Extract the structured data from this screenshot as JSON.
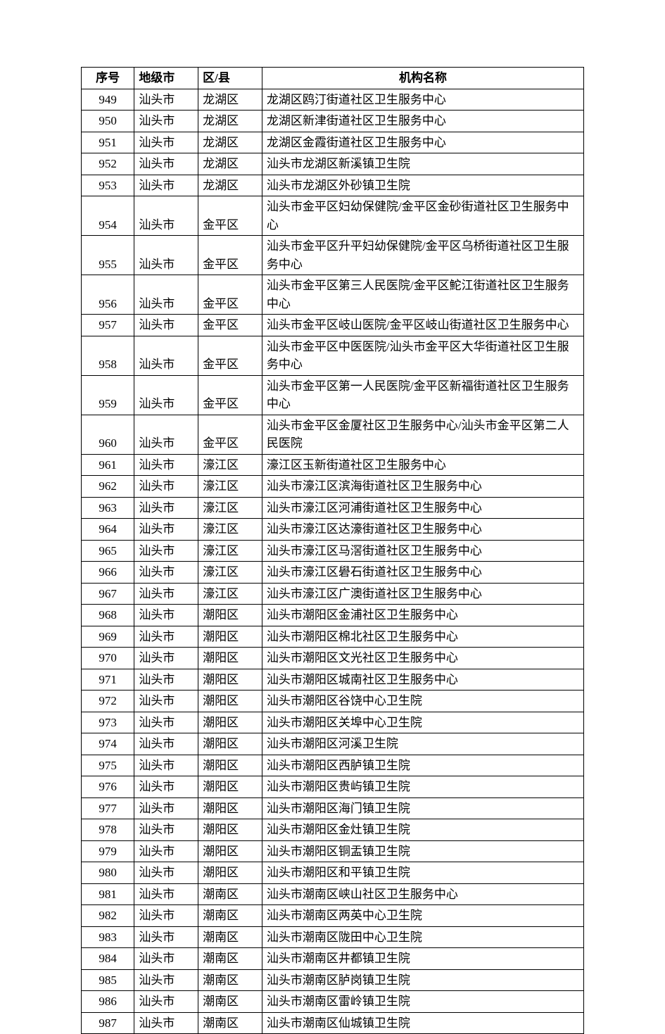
{
  "table": {
    "headers": {
      "seq": "序号",
      "city": "地级市",
      "district": "区/县",
      "name": "机构名称"
    },
    "rows": [
      {
        "seq": "949",
        "city": "汕头市",
        "district": "龙湖区",
        "name": "龙湖区鸥汀街道社区卫生服务中心"
      },
      {
        "seq": "950",
        "city": "汕头市",
        "district": "龙湖区",
        "name": "龙湖区新津街道社区卫生服务中心"
      },
      {
        "seq": "951",
        "city": "汕头市",
        "district": "龙湖区",
        "name": "龙湖区金霞街道社区卫生服务中心"
      },
      {
        "seq": "952",
        "city": "汕头市",
        "district": "龙湖区",
        "name": "汕头市龙湖区新溪镇卫生院"
      },
      {
        "seq": "953",
        "city": "汕头市",
        "district": "龙湖区",
        "name": "汕头市龙湖区外砂镇卫生院"
      },
      {
        "seq": "954",
        "city": "汕头市",
        "district": "金平区",
        "name": "汕头市金平区妇幼保健院/金平区金砂街道社区卫生服务中心"
      },
      {
        "seq": "955",
        "city": "汕头市",
        "district": "金平区",
        "name": "汕头市金平区升平妇幼保健院/金平区乌桥街道社区卫生服务中心"
      },
      {
        "seq": "956",
        "city": "汕头市",
        "district": "金平区",
        "name": "汕头市金平区第三人民医院/金平区鮀江街道社区卫生服务中心"
      },
      {
        "seq": "957",
        "city": "汕头市",
        "district": "金平区",
        "name": "汕头市金平区岐山医院/金平区岐山街道社区卫生服务中心"
      },
      {
        "seq": "958",
        "city": "汕头市",
        "district": "金平区",
        "name": "汕头市金平区中医医院/汕头市金平区大华街道社区卫生服务中心"
      },
      {
        "seq": "959",
        "city": "汕头市",
        "district": "金平区",
        "name": "汕头市金平区第一人民医院/金平区新福街道社区卫生服务中心"
      },
      {
        "seq": "960",
        "city": "汕头市",
        "district": "金平区",
        "name": "汕头市金平区金厦社区卫生服务中心/汕头市金平区第二人民医院"
      },
      {
        "seq": "961",
        "city": "汕头市",
        "district": "濠江区",
        "name": "濠江区玉新街道社区卫生服务中心"
      },
      {
        "seq": "962",
        "city": "汕头市",
        "district": "濠江区",
        "name": "汕头市濠江区滨海街道社区卫生服务中心"
      },
      {
        "seq": "963",
        "city": "汕头市",
        "district": "濠江区",
        "name": "汕头市濠江区河浦街道社区卫生服务中心"
      },
      {
        "seq": "964",
        "city": "汕头市",
        "district": "濠江区",
        "name": "汕头市濠江区达濠街道社区卫生服务中心"
      },
      {
        "seq": "965",
        "city": "汕头市",
        "district": "濠江区",
        "name": "汕头市濠江区马滘街道社区卫生服务中心"
      },
      {
        "seq": "966",
        "city": "汕头市",
        "district": "濠江区",
        "name": "汕头市濠江区礐石街道社区卫生服务中心"
      },
      {
        "seq": "967",
        "city": "汕头市",
        "district": "濠江区",
        "name": "汕头市濠江区广澳街道社区卫生服务中心"
      },
      {
        "seq": "968",
        "city": "汕头市",
        "district": "潮阳区",
        "name": "汕头市潮阳区金浦社区卫生服务中心"
      },
      {
        "seq": "969",
        "city": "汕头市",
        "district": "潮阳区",
        "name": "汕头市潮阳区棉北社区卫生服务中心"
      },
      {
        "seq": "970",
        "city": "汕头市",
        "district": "潮阳区",
        "name": "汕头市潮阳区文光社区卫生服务中心"
      },
      {
        "seq": "971",
        "city": "汕头市",
        "district": "潮阳区",
        "name": "汕头市潮阳区城南社区卫生服务中心"
      },
      {
        "seq": "972",
        "city": "汕头市",
        "district": "潮阳区",
        "name": "汕头市潮阳区谷饶中心卫生院"
      },
      {
        "seq": "973",
        "city": "汕头市",
        "district": "潮阳区",
        "name": "汕头市潮阳区关埠中心卫生院"
      },
      {
        "seq": "974",
        "city": "汕头市",
        "district": "潮阳区",
        "name": "汕头市潮阳区河溪卫生院"
      },
      {
        "seq": "975",
        "city": "汕头市",
        "district": "潮阳区",
        "name": "汕头市潮阳区西胪镇卫生院"
      },
      {
        "seq": "976",
        "city": "汕头市",
        "district": "潮阳区",
        "name": "汕头市潮阳区贵屿镇卫生院"
      },
      {
        "seq": "977",
        "city": "汕头市",
        "district": "潮阳区",
        "name": "汕头市潮阳区海门镇卫生院"
      },
      {
        "seq": "978",
        "city": "汕头市",
        "district": "潮阳区",
        "name": "汕头市潮阳区金灶镇卫生院"
      },
      {
        "seq": "979",
        "city": "汕头市",
        "district": "潮阳区",
        "name": "汕头市潮阳区铜盂镇卫生院"
      },
      {
        "seq": "980",
        "city": "汕头市",
        "district": "潮阳区",
        "name": "汕头市潮阳区和平镇卫生院"
      },
      {
        "seq": "981",
        "city": "汕头市",
        "district": "潮南区",
        "name": "汕头市潮南区峡山社区卫生服务中心"
      },
      {
        "seq": "982",
        "city": "汕头市",
        "district": "潮南区",
        "name": "汕头市潮南区两英中心卫生院"
      },
      {
        "seq": "983",
        "city": "汕头市",
        "district": "潮南区",
        "name": "汕头市潮南区陇田中心卫生院"
      },
      {
        "seq": "984",
        "city": "汕头市",
        "district": "潮南区",
        "name": "汕头市潮南区井都镇卫生院"
      },
      {
        "seq": "985",
        "city": "汕头市",
        "district": "潮南区",
        "name": "汕头市潮南区胪岗镇卫生院"
      },
      {
        "seq": "986",
        "city": "汕头市",
        "district": "潮南区",
        "name": "汕头市潮南区雷岭镇卫生院"
      },
      {
        "seq": "987",
        "city": "汕头市",
        "district": "潮南区",
        "name": "汕头市潮南区仙城镇卫生院"
      }
    ]
  },
  "style": {
    "body_background": "#ffffff",
    "border_color": "#000000",
    "font_family": "SimSun",
    "font_size_pt": 12,
    "text_color": "#000000",
    "col_widths": {
      "seq": 60,
      "city": 75,
      "district": 75,
      "name": 430
    }
  }
}
